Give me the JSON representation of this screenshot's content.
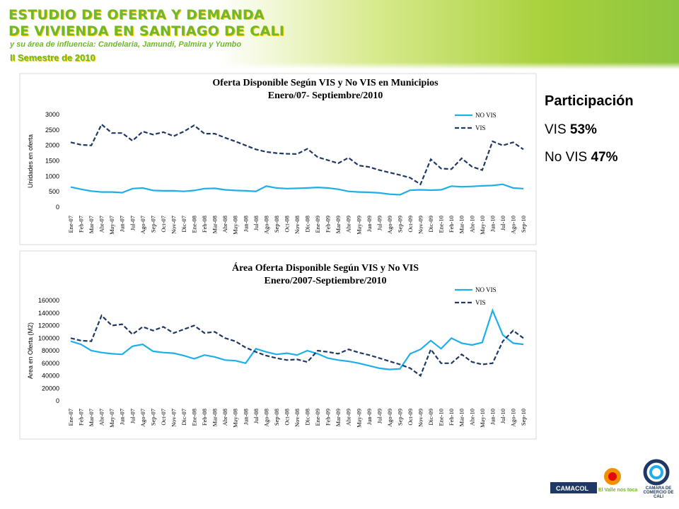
{
  "header": {
    "title1": "ESTUDIO DE OFERTA Y DEMANDA",
    "title2": "DE VIVIENDA EN SANTIAGO DE CALI",
    "subtitle": "y su área de influencia: Candelaria, Jamundí, Palmira y Yumbo",
    "semester": "II Semestre de 2010"
  },
  "sidebar": {
    "title": "Participación",
    "items": [
      {
        "label": "VIS",
        "value": "53%"
      },
      {
        "label": "No VIS",
        "value": "47%"
      }
    ]
  },
  "footer": {
    "logos": [
      "CAMACOL",
      "El Valle nos toca",
      "CAMARA DE COMERCIO DE CALI"
    ]
  },
  "chart_data": [
    {
      "type": "line",
      "title": "Oferta Disponible Según VIS y No VIS en Municipios",
      "subtitle": "Enero/07- Septiembre/2010",
      "y_label": "Unidades en oferta",
      "categories": [
        "Ene-07",
        "Feb-07",
        "Mar-07",
        "Abr-07",
        "May-07",
        "Jun-07",
        "Jul-07",
        "Ago-07",
        "Sep-07",
        "Oct-07",
        "Nov-07",
        "Dic-07",
        "Ene-08",
        "Feb-08",
        "Mar-08",
        "Abr-08",
        "May-08",
        "Jun-08",
        "Jul-08",
        "Ago-08",
        "Sep-08",
        "Oct-08",
        "Nov-08",
        "Dic-08",
        "Ene-09",
        "Feb-09",
        "Mar-09",
        "Abr-09",
        "May-09",
        "Jun-09",
        "Jul-09",
        "Ago-09",
        "Sep-09",
        "Oct-09",
        "Nov-09",
        "Dic-09",
        "Ene-10",
        "Feb-10",
        "Mar-10",
        "Abr-10",
        "May-10",
        "Jun-10",
        "Jul-10",
        "Ago-10",
        "Sep-10"
      ],
      "series": [
        {
          "name": "NO VIS",
          "color": "#1eaee8",
          "dashed": false,
          "values": [
            650,
            580,
            520,
            490,
            490,
            470,
            600,
            620,
            540,
            530,
            530,
            510,
            540,
            600,
            610,
            560,
            540,
            530,
            510,
            680,
            620,
            600,
            610,
            620,
            640,
            620,
            580,
            510,
            490,
            480,
            460,
            420,
            400,
            550,
            560,
            550,
            560,
            680,
            660,
            670,
            690,
            700,
            740,
            620,
            600
          ]
        },
        {
          "name": "VIS",
          "color": "#1f3864",
          "dashed": true,
          "values": [
            2100,
            2020,
            2000,
            2680,
            2400,
            2400,
            2150,
            2450,
            2350,
            2430,
            2300,
            2450,
            2650,
            2380,
            2380,
            2250,
            2130,
            2000,
            1870,
            1790,
            1750,
            1730,
            1720,
            1890,
            1620,
            1520,
            1420,
            1600,
            1350,
            1300,
            1200,
            1120,
            1040,
            950,
            740,
            1550,
            1250,
            1230,
            1580,
            1310,
            1200,
            2130,
            2000,
            2100,
            1870
          ]
        }
      ],
      "ylim": [
        0,
        3000
      ],
      "yticks": [
        0,
        500,
        1000,
        1500,
        2000,
        2500,
        3000
      ],
      "grid": false,
      "legend": "top-right"
    },
    {
      "type": "line",
      "title": "Área Oferta Disponible Según VIS y No VIS",
      "subtitle": "Enero/2007-Septiembre/2010",
      "y_label": "Area en Oferta (M2)",
      "categories": [
        "Ene-07",
        "Feb-07",
        "Mar-07",
        "Abr-07",
        "May-07",
        "Jun-07",
        "Jul-07",
        "Ago-07",
        "Sep-07",
        "Oct-07",
        "Nov-07",
        "Dic-07",
        "Ene-08",
        "Feb-08",
        "Mar-08",
        "Abr-08",
        "May-08",
        "Jun-08",
        "Jul-08",
        "Ago-08",
        "Sep-08",
        "Oct-08",
        "Nov-08",
        "Dic-08",
        "Ene-09",
        "Feb-09",
        "Mar-09",
        "Abr-09",
        "May-09",
        "Jun-09",
        "Jul-09",
        "Ago-09",
        "Sep-09",
        "Oct-09",
        "Nov-09",
        "Dic-09",
        "Ene-10",
        "Feb-10",
        "Mar-10",
        "Abr-10",
        "May-10",
        "Jun-10",
        "Jul-10",
        "Ago-10",
        "Sep-10"
      ],
      "series": [
        {
          "name": "NO VIS",
          "color": "#1eaee8",
          "dashed": false,
          "values": [
            95000,
            90000,
            80000,
            77000,
            75000,
            74000,
            87000,
            90000,
            79000,
            77000,
            76000,
            72000,
            67000,
            73000,
            70000,
            65000,
            64000,
            60000,
            83000,
            78000,
            74000,
            76000,
            73000,
            80000,
            75000,
            68000,
            65000,
            63000,
            60000,
            56000,
            52000,
            50000,
            51000,
            75000,
            82000,
            96000,
            83000,
            100000,
            92000,
            89000,
            93000,
            144000,
            105000,
            92000,
            90000
          ]
        },
        {
          "name": "VIS",
          "color": "#1f3864",
          "dashed": true,
          "values": [
            100000,
            96000,
            95000,
            136000,
            120000,
            122000,
            106000,
            118000,
            112000,
            118000,
            108000,
            114000,
            120000,
            108000,
            110000,
            100000,
            95000,
            85000,
            78000,
            72000,
            68000,
            65000,
            66000,
            62000,
            80000,
            78000,
            75000,
            82000,
            77000,
            73000,
            68000,
            63000,
            58000,
            52000,
            40000,
            82000,
            60000,
            60000,
            74000,
            62000,
            58000,
            60000,
            95000,
            112000,
            100000
          ]
        }
      ],
      "ylim": [
        0,
        160000
      ],
      "yticks": [
        0,
        20000,
        40000,
        60000,
        80000,
        100000,
        120000,
        140000,
        160000
      ],
      "grid": false,
      "legend": "top-right"
    }
  ]
}
